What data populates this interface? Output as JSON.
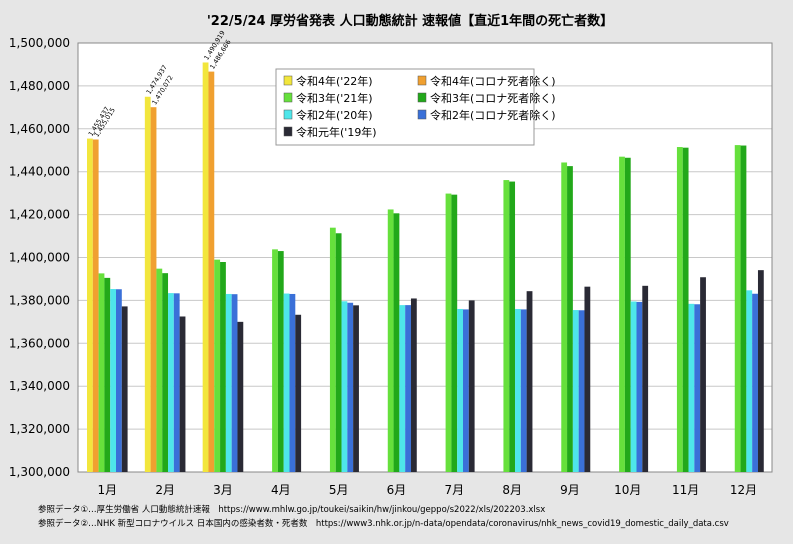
{
  "chart_data": {
    "type": "bar",
    "title": "'22/5/24 厚労省発表 人口動態統計 速報値【直近1年間の死亡者数】",
    "xlabel": "",
    "ylabel": "",
    "ylim": [
      1300000,
      1500000
    ],
    "yticks": [
      "1,300,000",
      "1,320,000",
      "1,340,000",
      "1,360,000",
      "1,380,000",
      "1,400,000",
      "1,420,000",
      "1,440,000",
      "1,460,000",
      "1,480,000",
      "1,500,000"
    ],
    "categories": [
      "1月",
      "2月",
      "3月",
      "4月",
      "5月",
      "6月",
      "7月",
      "8月",
      "9月",
      "10月",
      "11月",
      "12月"
    ],
    "grid": true,
    "legend_position": "top-center",
    "series": [
      {
        "name": "令和4年('22年)",
        "color": "#f2e63c",
        "values": [
          1455437,
          1474937,
          1490919,
          null,
          null,
          null,
          null,
          null,
          null,
          null,
          null,
          null
        ]
      },
      {
        "name": "令和4年(コロナ死者除く)",
        "color": "#f0a030",
        "values": [
          1455015,
          1470072,
          1486666,
          null,
          null,
          null,
          null,
          null,
          null,
          null,
          null,
          null
        ]
      },
      {
        "name": "令和3年('21年)",
        "color": "#66e03c",
        "values": [
          1392600,
          1394800,
          1399000,
          1403800,
          1413900,
          1422400,
          1429800,
          1436100,
          1444300,
          1447000,
          1451500,
          1452400
        ]
      },
      {
        "name": "令和3年(コロナ死者除く)",
        "color": "#22a81a",
        "values": [
          1390500,
          1392700,
          1397900,
          1403000,
          1411300,
          1420600,
          1429300,
          1435400,
          1442600,
          1446500,
          1451200,
          1452200
        ]
      },
      {
        "name": "令和2年('20年)",
        "color": "#4ee6ea",
        "values": [
          1385300,
          1383400,
          1383000,
          1383200,
          1379600,
          1377800,
          1376000,
          1376000,
          1375500,
          1379500,
          1378400,
          1384700
        ]
      },
      {
        "name": "令和2年(コロナ死者除く)",
        "color": "#3a70d8",
        "values": [
          1385200,
          1383300,
          1382900,
          1383000,
          1378900,
          1377800,
          1375800,
          1375800,
          1375400,
          1379300,
          1378200,
          1383100
        ]
      },
      {
        "name": "令和元年('19年)",
        "color": "#2a2a35",
        "values": [
          1377200,
          1372500,
          1370000,
          1373300,
          1377700,
          1380900,
          1380000,
          1384300,
          1386400,
          1386800,
          1390800,
          1394100
        ]
      }
    ],
    "data_labels": [
      {
        "category": "1月",
        "text": "1,455,437"
      },
      {
        "category": "1月",
        "text": "1,455,015"
      },
      {
        "category": "2月",
        "text": "1,474,937"
      },
      {
        "category": "2月",
        "text": "1,470,072"
      },
      {
        "category": "3月",
        "text": "1,490,919"
      },
      {
        "category": "3月",
        "text": "1,486,666"
      }
    ]
  },
  "references": [
    "参照データ①…厚生労働省 人口動態統計速報　https://www.mhlw.go.jp/toukei/saikin/hw/jinkou/geppo/s2022/xls/202203.xlsx",
    "参照データ②…NHK 新型コロナウイルス 日本国内の感染者数・死者数　https://www3.nhk.or.jp/n-data/opendata/coronavirus/nhk_news_covid19_domestic_daily_data.csv"
  ]
}
